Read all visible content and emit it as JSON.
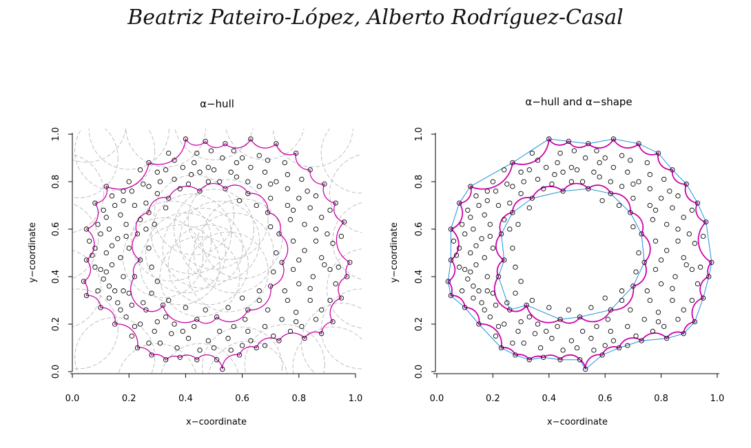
{
  "page": {
    "header": "Beatriz Pateiro-López, Alberto Rodríguez-Casal"
  },
  "colors": {
    "points": "#000000",
    "hull_arcs": "#cc00aa",
    "balls": "#b8b8b8",
    "shape_edges": "#1f8fd6"
  },
  "chart_data": [
    {
      "type": "scatter",
      "title": "α−hull",
      "xlabel": "x−coordinate",
      "ylabel": "y−coordinate",
      "xlim": [
        0,
        1
      ],
      "ylim": [
        0,
        1
      ],
      "xticks": [
        "0.0",
        "0.2",
        "0.4",
        "0.6",
        "0.8",
        "1.0"
      ],
      "yticks": [
        "0.0",
        "0.2",
        "0.4",
        "0.6",
        "0.8",
        "1.0"
      ],
      "grid": false,
      "layers": [
        "sample points",
        "α-hull boundary",
        "complement balls"
      ]
    },
    {
      "type": "scatter",
      "title": "α−hull and α−shape",
      "xlabel": "x−coordinate",
      "ylabel": "y−coordinate",
      "xlim": [
        0,
        1
      ],
      "ylim": [
        0,
        1
      ],
      "xticks": [
        "0.0",
        "0.2",
        "0.4",
        "0.6",
        "0.8",
        "1.0"
      ],
      "yticks": [
        "0.0",
        "0.2",
        "0.4",
        "0.6",
        "0.8",
        "1.0"
      ],
      "grid": false,
      "layers": [
        "sample points",
        "α-hull boundary",
        "α-shape edges"
      ]
    }
  ],
  "sample_points": [
    [
      0.53,
      0.01
    ],
    [
      0.33,
      0.05
    ],
    [
      0.38,
      0.06
    ],
    [
      0.44,
      0.05
    ],
    [
      0.51,
      0.05
    ],
    [
      0.59,
      0.07
    ],
    [
      0.65,
      0.1
    ],
    [
      0.73,
      0.13
    ],
    [
      0.82,
      0.14
    ],
    [
      0.88,
      0.16
    ],
    [
      0.92,
      0.21
    ],
    [
      0.95,
      0.31
    ],
    [
      0.97,
      0.4
    ],
    [
      0.98,
      0.46
    ],
    [
      0.96,
      0.63
    ],
    [
      0.93,
      0.71
    ],
    [
      0.89,
      0.79
    ],
    [
      0.84,
      0.85
    ],
    [
      0.79,
      0.92
    ],
    [
      0.72,
      0.96
    ],
    [
      0.63,
      0.98
    ],
    [
      0.54,
      0.96
    ],
    [
      0.47,
      0.97
    ],
    [
      0.4,
      0.98
    ],
    [
      0.27,
      0.88
    ],
    [
      0.12,
      0.78
    ],
    [
      0.08,
      0.71
    ],
    [
      0.05,
      0.6
    ],
    [
      0.05,
      0.47
    ],
    [
      0.04,
      0.38
    ],
    [
      0.05,
      0.32
    ],
    [
      0.1,
      0.27
    ],
    [
      0.15,
      0.2
    ],
    [
      0.23,
      0.1
    ],
    [
      0.28,
      0.07
    ],
    [
      0.26,
      0.26
    ],
    [
      0.32,
      0.28
    ],
    [
      0.44,
      0.22
    ],
    [
      0.51,
      0.23
    ],
    [
      0.62,
      0.26
    ],
    [
      0.7,
      0.36
    ],
    [
      0.74,
      0.46
    ],
    [
      0.73,
      0.58
    ],
    [
      0.69,
      0.67
    ],
    [
      0.62,
      0.75
    ],
    [
      0.54,
      0.77
    ],
    [
      0.45,
      0.76
    ],
    [
      0.34,
      0.73
    ],
    [
      0.27,
      0.67
    ],
    [
      0.23,
      0.58
    ],
    [
      0.24,
      0.47
    ],
    [
      0.22,
      0.4
    ],
    [
      0.12,
      0.65
    ],
    [
      0.15,
      0.7
    ],
    [
      0.18,
      0.72
    ],
    [
      0.21,
      0.76
    ],
    [
      0.25,
      0.79
    ],
    [
      0.31,
      0.8
    ],
    [
      0.36,
      0.81
    ],
    [
      0.42,
      0.83
    ],
    [
      0.48,
      0.86
    ],
    [
      0.53,
      0.9
    ],
    [
      0.58,
      0.88
    ],
    [
      0.63,
      0.86
    ],
    [
      0.68,
      0.84
    ],
    [
      0.72,
      0.8
    ],
    [
      0.76,
      0.77
    ],
    [
      0.8,
      0.73
    ],
    [
      0.84,
      0.69
    ],
    [
      0.88,
      0.65
    ],
    [
      0.9,
      0.58
    ],
    [
      0.86,
      0.55
    ],
    [
      0.82,
      0.51
    ],
    [
      0.88,
      0.48
    ],
    [
      0.91,
      0.43
    ],
    [
      0.85,
      0.4
    ],
    [
      0.8,
      0.37
    ],
    [
      0.84,
      0.3
    ],
    [
      0.79,
      0.25
    ],
    [
      0.74,
      0.22
    ],
    [
      0.68,
      0.19
    ],
    [
      0.62,
      0.17
    ],
    [
      0.55,
      0.14
    ],
    [
      0.48,
      0.13
    ],
    [
      0.41,
      0.14
    ],
    [
      0.35,
      0.16
    ],
    [
      0.29,
      0.17
    ],
    [
      0.24,
      0.2
    ],
    [
      0.19,
      0.23
    ],
    [
      0.16,
      0.29
    ],
    [
      0.13,
      0.36
    ],
    [
      0.1,
      0.43
    ],
    [
      0.12,
      0.5
    ],
    [
      0.16,
      0.56
    ],
    [
      0.19,
      0.62
    ],
    [
      0.1,
      0.58
    ],
    [
      0.14,
      0.45
    ],
    [
      0.18,
      0.4
    ],
    [
      0.2,
      0.33
    ],
    [
      0.28,
      0.33
    ],
    [
      0.36,
      0.2
    ],
    [
      0.57,
      0.19
    ],
    [
      0.66,
      0.3
    ],
    [
      0.76,
      0.3
    ],
    [
      0.78,
      0.43
    ],
    [
      0.78,
      0.55
    ],
    [
      0.77,
      0.64
    ],
    [
      0.7,
      0.73
    ],
    [
      0.58,
      0.82
    ],
    [
      0.48,
      0.8
    ],
    [
      0.38,
      0.77
    ],
    [
      0.3,
      0.75
    ],
    [
      0.26,
      0.71
    ],
    [
      0.2,
      0.52
    ],
    [
      0.17,
      0.48
    ],
    [
      0.3,
      0.84
    ],
    [
      0.36,
      0.89
    ],
    [
      0.44,
      0.92
    ],
    [
      0.57,
      0.93
    ],
    [
      0.66,
      0.91
    ],
    [
      0.75,
      0.88
    ],
    [
      0.83,
      0.76
    ],
    [
      0.92,
      0.54
    ],
    [
      0.93,
      0.37
    ],
    [
      0.88,
      0.26
    ],
    [
      0.81,
      0.19
    ],
    [
      0.71,
      0.15
    ],
    [
      0.6,
      0.11
    ],
    [
      0.45,
      0.09
    ],
    [
      0.31,
      0.12
    ],
    [
      0.21,
      0.15
    ],
    [
      0.13,
      0.31
    ],
    [
      0.08,
      0.52
    ],
    [
      0.09,
      0.62
    ],
    [
      0.17,
      0.66
    ],
    [
      0.22,
      0.7
    ],
    [
      0.26,
      0.6
    ],
    [
      0.27,
      0.52
    ],
    [
      0.28,
      0.44
    ],
    [
      0.3,
      0.38
    ],
    [
      0.34,
      0.3
    ],
    [
      0.4,
      0.27
    ],
    [
      0.47,
      0.26
    ],
    [
      0.55,
      0.27
    ],
    [
      0.6,
      0.31
    ],
    [
      0.66,
      0.34
    ],
    [
      0.71,
      0.42
    ],
    [
      0.72,
      0.5
    ],
    [
      0.7,
      0.61
    ],
    [
      0.65,
      0.7
    ],
    [
      0.59,
      0.72
    ],
    [
      0.52,
      0.8
    ],
    [
      0.41,
      0.79
    ],
    [
      0.33,
      0.69
    ],
    [
      0.29,
      0.62
    ],
    [
      0.24,
      0.64
    ],
    [
      0.19,
      0.57
    ],
    [
      0.14,
      0.53
    ],
    [
      0.11,
      0.39
    ],
    [
      0.18,
      0.34
    ],
    [
      0.25,
      0.29
    ],
    [
      0.33,
      0.23
    ],
    [
      0.43,
      0.19
    ],
    [
      0.52,
      0.17
    ],
    [
      0.61,
      0.22
    ],
    [
      0.69,
      0.26
    ],
    [
      0.75,
      0.34
    ],
    [
      0.8,
      0.47
    ],
    [
      0.82,
      0.62
    ],
    [
      0.76,
      0.7
    ],
    [
      0.7,
      0.79
    ],
    [
      0.62,
      0.8
    ],
    [
      0.5,
      0.85
    ],
    [
      0.39,
      0.86
    ],
    [
      0.33,
      0.85
    ],
    [
      0.27,
      0.78
    ],
    [
      0.2,
      0.8
    ],
    [
      0.14,
      0.74
    ],
    [
      0.11,
      0.68
    ],
    [
      0.06,
      0.55
    ],
    [
      0.08,
      0.44
    ],
    [
      0.09,
      0.34
    ],
    [
      0.17,
      0.26
    ],
    [
      0.22,
      0.19
    ],
    [
      0.27,
      0.12
    ],
    [
      0.37,
      0.1
    ],
    [
      0.5,
      0.1
    ],
    [
      0.63,
      0.13
    ],
    [
      0.77,
      0.17
    ],
    [
      0.86,
      0.22
    ],
    [
      0.91,
      0.3
    ],
    [
      0.94,
      0.44
    ],
    [
      0.95,
      0.57
    ],
    [
      0.91,
      0.68
    ],
    [
      0.86,
      0.74
    ],
    [
      0.81,
      0.81
    ],
    [
      0.76,
      0.83
    ],
    [
      0.69,
      0.89
    ],
    [
      0.6,
      0.9
    ],
    [
      0.49,
      0.93
    ],
    [
      0.43,
      0.88
    ],
    [
      0.34,
      0.92
    ],
    [
      0.24,
      0.85
    ],
    [
      0.18,
      0.76
    ],
    [
      0.13,
      0.6
    ],
    [
      0.07,
      0.49
    ],
    [
      0.12,
      0.42
    ],
    [
      0.15,
      0.34
    ],
    [
      0.21,
      0.28
    ],
    [
      0.3,
      0.21
    ],
    [
      0.39,
      0.17
    ],
    [
      0.56,
      0.09
    ],
    [
      0.68,
      0.11
    ],
    [
      0.79,
      0.21
    ],
    [
      0.84,
      0.35
    ],
    [
      0.89,
      0.45
    ],
    [
      0.86,
      0.6
    ],
    [
      0.78,
      0.68
    ],
    [
      0.66,
      0.78
    ],
    [
      0.56,
      0.84
    ],
    [
      0.45,
      0.84
    ]
  ],
  "hull": {
    "outer": [
      [
        0.53,
        0.01
      ],
      [
        0.51,
        0.05
      ],
      [
        0.44,
        0.05
      ],
      [
        0.38,
        0.06
      ],
      [
        0.33,
        0.05
      ],
      [
        0.28,
        0.07
      ],
      [
        0.23,
        0.1
      ],
      [
        0.15,
        0.2
      ],
      [
        0.1,
        0.27
      ],
      [
        0.05,
        0.32
      ],
      [
        0.04,
        0.38
      ],
      [
        0.05,
        0.47
      ],
      [
        0.05,
        0.6
      ],
      [
        0.08,
        0.71
      ],
      [
        0.12,
        0.78
      ],
      [
        0.27,
        0.88
      ],
      [
        0.4,
        0.98
      ],
      [
        0.47,
        0.97
      ],
      [
        0.54,
        0.96
      ],
      [
        0.63,
        0.98
      ],
      [
        0.72,
        0.96
      ],
      [
        0.79,
        0.92
      ],
      [
        0.84,
        0.85
      ],
      [
        0.89,
        0.79
      ],
      [
        0.93,
        0.71
      ],
      [
        0.96,
        0.63
      ],
      [
        0.98,
        0.46
      ],
      [
        0.97,
        0.4
      ],
      [
        0.95,
        0.31
      ],
      [
        0.92,
        0.21
      ],
      [
        0.88,
        0.16
      ],
      [
        0.82,
        0.14
      ],
      [
        0.73,
        0.13
      ],
      [
        0.65,
        0.1
      ],
      [
        0.59,
        0.07
      ]
    ],
    "inner": [
      [
        0.23,
        0.58
      ],
      [
        0.27,
        0.67
      ],
      [
        0.34,
        0.73
      ],
      [
        0.45,
        0.76
      ],
      [
        0.54,
        0.77
      ],
      [
        0.62,
        0.75
      ],
      [
        0.69,
        0.67
      ],
      [
        0.73,
        0.58
      ],
      [
        0.74,
        0.46
      ],
      [
        0.7,
        0.36
      ],
      [
        0.62,
        0.26
      ],
      [
        0.51,
        0.23
      ],
      [
        0.44,
        0.22
      ],
      [
        0.32,
        0.28
      ],
      [
        0.26,
        0.26
      ],
      [
        0.22,
        0.4
      ],
      [
        0.24,
        0.47
      ]
    ],
    "ball_centers": [
      [
        0.35,
        0.55
      ],
      [
        0.4,
        0.5
      ],
      [
        0.46,
        0.52
      ],
      [
        0.52,
        0.55
      ],
      [
        0.57,
        0.5
      ],
      [
        0.48,
        0.45
      ],
      [
        0.42,
        0.58
      ],
      [
        0.55,
        0.42
      ],
      [
        0.38,
        0.45
      ],
      [
        0.5,
        0.6
      ],
      [
        0.45,
        0.4
      ],
      [
        0.6,
        0.56
      ],
      [
        0.32,
        0.48
      ],
      [
        0.43,
        0.66
      ],
      [
        0.55,
        0.64
      ],
      [
        0.05,
        1.05
      ],
      [
        0.2,
        1.02
      ],
      [
        0.33,
        1.03
      ],
      [
        0.5,
        1.06
      ],
      [
        0.68,
        1.06
      ],
      [
        0.85,
        1.03
      ],
      [
        1.02,
        0.92
      ],
      [
        1.05,
        0.75
      ],
      [
        1.06,
        0.55
      ],
      [
        1.04,
        0.35
      ],
      [
        1.02,
        0.18
      ],
      [
        0.92,
        0.02
      ],
      [
        0.75,
        0.03
      ],
      [
        0.62,
        -0.04
      ],
      [
        0.45,
        -0.05
      ],
      [
        0.3,
        -0.05
      ],
      [
        0.15,
        0.06
      ],
      [
        0.02,
        0.18
      ],
      [
        -0.04,
        0.35
      ],
      [
        -0.05,
        0.55
      ],
      [
        -0.03,
        0.75
      ],
      [
        0.02,
        0.9
      ],
      [
        0.15,
        0.93
      ],
      [
        0.6,
        0.02
      ],
      [
        0.95,
        0.12
      ]
    ]
  }
}
